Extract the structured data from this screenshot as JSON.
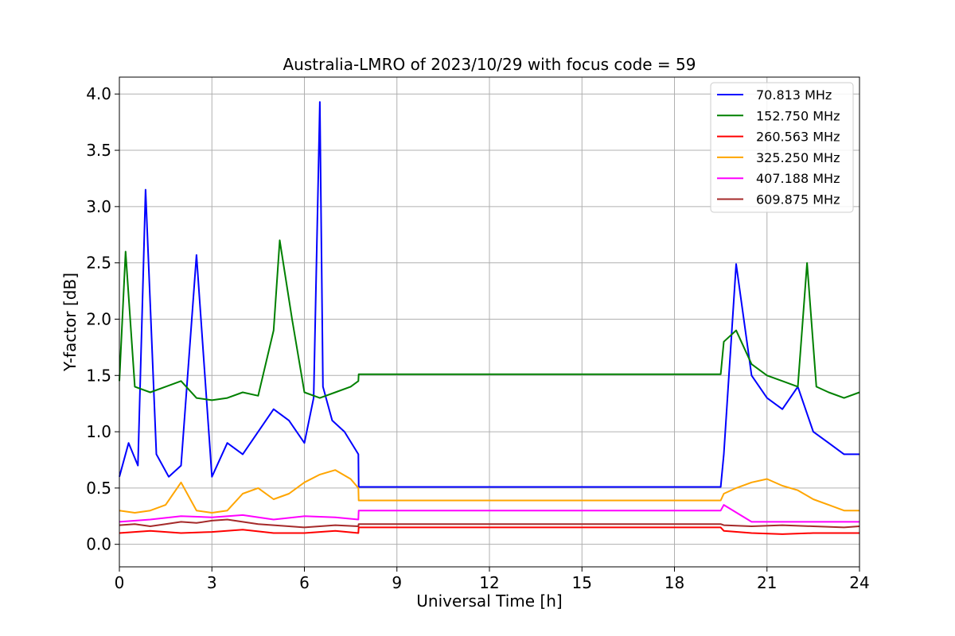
{
  "chart_data": {
    "type": "line",
    "title": "Australia-LMRO of 2023/10/29 with focus code = 59",
    "xlabel": "Universal Time [h]",
    "ylabel": "Y-factor [dB]",
    "xlim": [
      0,
      24
    ],
    "ylim": [
      -0.2,
      4.15
    ],
    "x_ticks": [
      0,
      3,
      6,
      9,
      12,
      15,
      18,
      21,
      24
    ],
    "x_tick_labels": [
      "0",
      "3",
      "6",
      "9",
      "12",
      "15",
      "18",
      "21",
      "24"
    ],
    "y_ticks": [
      0.0,
      0.5,
      1.0,
      1.5,
      2.0,
      2.5,
      3.0,
      3.5,
      4.0
    ],
    "y_tick_labels": [
      "0.0",
      "0.5",
      "1.0",
      "1.5",
      "2.0",
      "2.5",
      "3.0",
      "3.5",
      "4.0"
    ],
    "grid": true,
    "legend_position": "top-right",
    "series": [
      {
        "name": " 70.813 MHz",
        "color": "#0000ff",
        "x": [
          0,
          0.3,
          0.6,
          0.85,
          1.2,
          1.6,
          2.0,
          2.5,
          3.0,
          3.5,
          4.0,
          4.5,
          5.0,
          5.5,
          6.0,
          6.3,
          6.5,
          6.6,
          6.9,
          7.3,
          7.75,
          7.76,
          19.5,
          19.6,
          20.0,
          20.5,
          21.0,
          21.5,
          22.0,
          22.5,
          23.0,
          23.5,
          24.0
        ],
        "y": [
          0.6,
          0.9,
          0.7,
          3.15,
          0.8,
          0.6,
          0.7,
          2.57,
          0.6,
          0.9,
          0.8,
          1.0,
          1.2,
          1.1,
          0.9,
          1.3,
          3.93,
          1.4,
          1.1,
          1.0,
          0.8,
          0.51,
          0.51,
          0.8,
          2.49,
          1.5,
          1.3,
          1.2,
          1.4,
          1.0,
          0.9,
          0.8,
          0.8
        ]
      },
      {
        "name": "152.750 MHz",
        "color": "#008000",
        "x": [
          0,
          0.2,
          0.5,
          1.0,
          1.5,
          2.0,
          2.5,
          3.0,
          3.5,
          4.0,
          4.5,
          5.0,
          5.2,
          5.6,
          6.0,
          6.5,
          7.0,
          7.5,
          7.75,
          7.76,
          19.5,
          19.6,
          20.0,
          20.5,
          21.0,
          21.5,
          22.0,
          22.3,
          22.6,
          23.0,
          23.5,
          24.0
        ],
        "y": [
          1.45,
          2.6,
          1.4,
          1.35,
          1.4,
          1.45,
          1.3,
          1.28,
          1.3,
          1.35,
          1.32,
          1.9,
          2.7,
          2.0,
          1.35,
          1.3,
          1.35,
          1.4,
          1.45,
          1.51,
          1.51,
          1.8,
          1.9,
          1.6,
          1.5,
          1.45,
          1.4,
          2.5,
          1.4,
          1.35,
          1.3,
          1.35
        ]
      },
      {
        "name": "260.563 MHz",
        "color": "#ff0000",
        "x": [
          0,
          1,
          2,
          3,
          4,
          5,
          6,
          7,
          7.75,
          7.76,
          19.5,
          19.6,
          20.5,
          21.5,
          22.5,
          23.5,
          24.0
        ],
        "y": [
          0.1,
          0.12,
          0.1,
          0.11,
          0.13,
          0.1,
          0.1,
          0.12,
          0.1,
          0.15,
          0.15,
          0.12,
          0.1,
          0.09,
          0.1,
          0.1,
          0.1
        ]
      },
      {
        "name": "325.250 MHz",
        "color": "#ffa500",
        "x": [
          0,
          0.5,
          1.0,
          1.5,
          2.0,
          2.5,
          3.0,
          3.5,
          4.0,
          4.5,
          5.0,
          5.5,
          6.0,
          6.5,
          7.0,
          7.5,
          7.75,
          7.76,
          19.5,
          19.6,
          20.0,
          20.5,
          21.0,
          21.5,
          22.0,
          22.5,
          23.0,
          23.5,
          24.0
        ],
        "y": [
          0.3,
          0.28,
          0.3,
          0.35,
          0.55,
          0.3,
          0.28,
          0.3,
          0.45,
          0.5,
          0.4,
          0.45,
          0.55,
          0.62,
          0.66,
          0.58,
          0.5,
          0.39,
          0.39,
          0.45,
          0.5,
          0.55,
          0.58,
          0.52,
          0.48,
          0.4,
          0.35,
          0.3,
          0.3
        ]
      },
      {
        "name": "407.188 MHz",
        "color": "#ff00ff",
        "x": [
          0,
          1,
          2,
          3,
          4,
          5,
          6,
          7,
          7.75,
          7.76,
          19.5,
          19.6,
          20.5,
          21.5,
          22.5,
          23.5,
          24.0
        ],
        "y": [
          0.2,
          0.22,
          0.25,
          0.24,
          0.26,
          0.22,
          0.25,
          0.24,
          0.22,
          0.3,
          0.3,
          0.35,
          0.2,
          0.2,
          0.2,
          0.2,
          0.2
        ]
      },
      {
        "name": "609.875 MHz",
        "color": "#a52a2a",
        "x": [
          0,
          0.5,
          1,
          1.5,
          2,
          2.5,
          3,
          3.5,
          4,
          4.5,
          5,
          5.5,
          6,
          6.5,
          7,
          7.75,
          7.76,
          19.5,
          19.6,
          20.5,
          21.5,
          22.5,
          23.5,
          24.0
        ],
        "y": [
          0.17,
          0.18,
          0.16,
          0.18,
          0.2,
          0.19,
          0.21,
          0.22,
          0.2,
          0.18,
          0.17,
          0.16,
          0.15,
          0.16,
          0.17,
          0.16,
          0.18,
          0.18,
          0.17,
          0.16,
          0.17,
          0.16,
          0.15,
          0.16
        ]
      }
    ]
  }
}
